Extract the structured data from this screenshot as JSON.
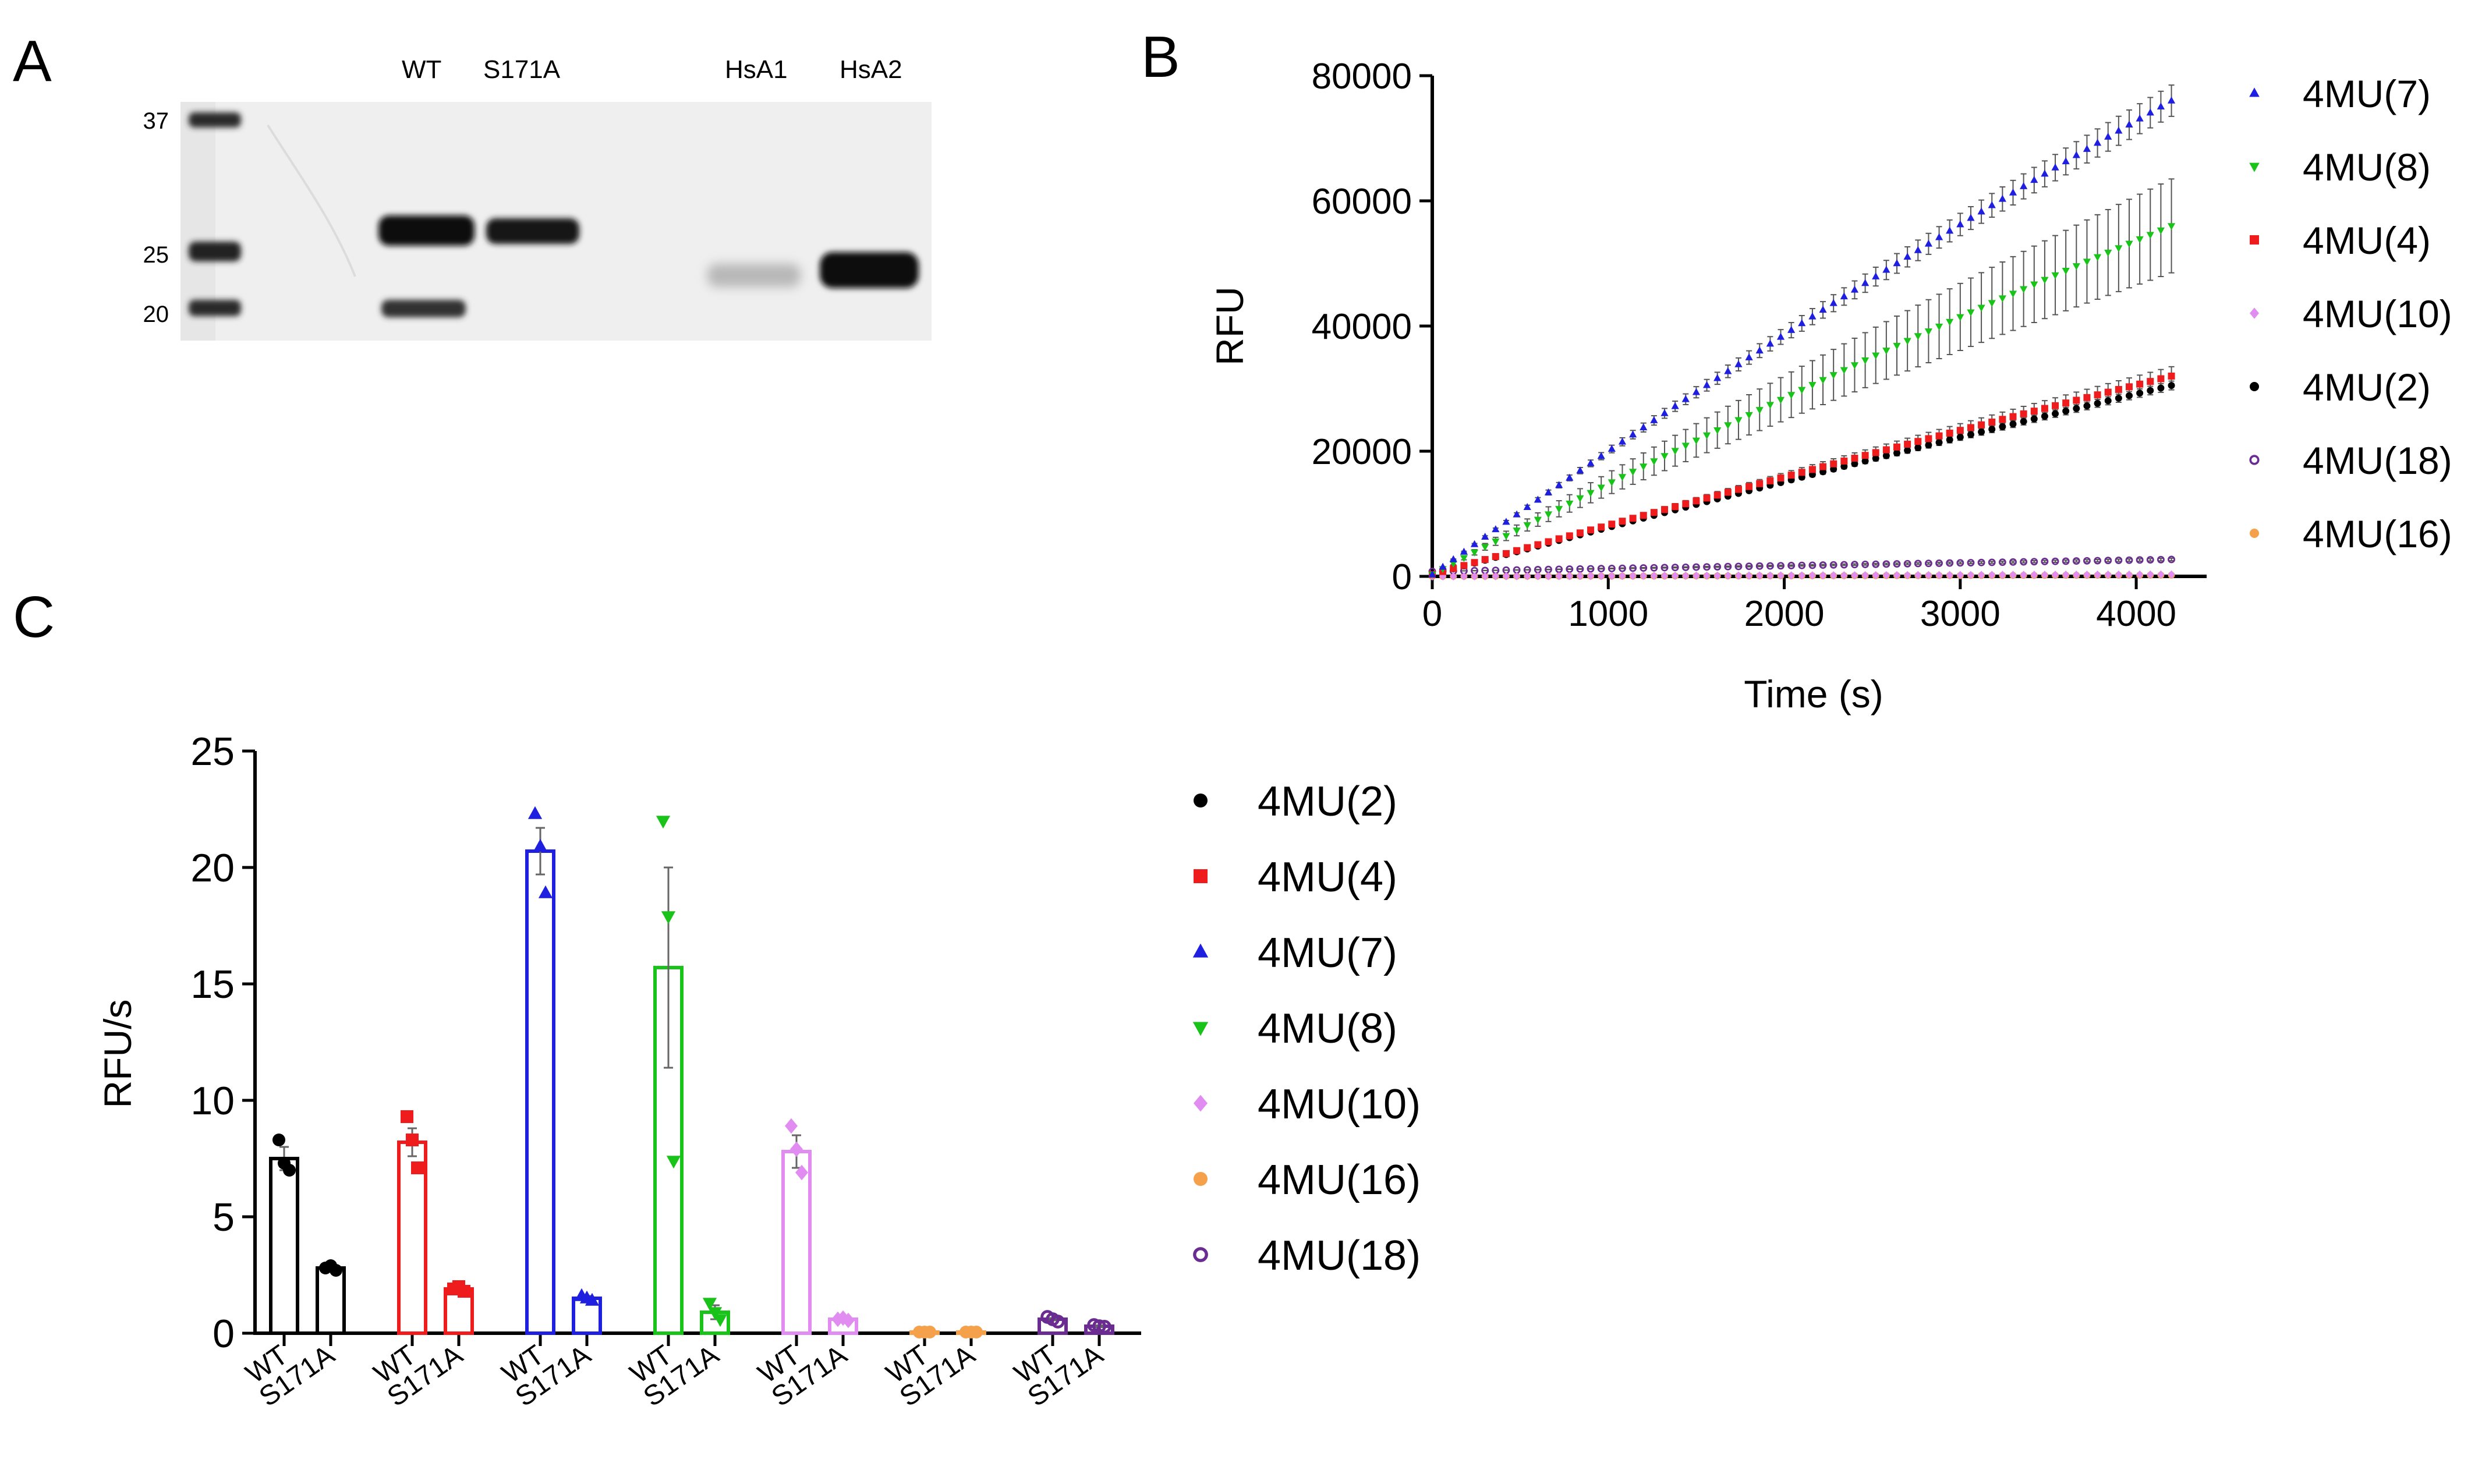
{
  "panel_labels": {
    "a": "A",
    "b": "B",
    "c": "C"
  },
  "gel": {
    "lane_labels": [
      "WT",
      "S171A",
      "HsA1",
      "HsA2"
    ],
    "mw_markers": [
      "37",
      "25",
      "20"
    ]
  },
  "chart_data": [
    {
      "type": "scatter",
      "title": "",
      "xlabel": "Time (s)",
      "ylabel": "RFU",
      "xlim": [
        0,
        4400
      ],
      "ylim": [
        0,
        80000
      ],
      "x_ticks": [
        "0",
        "1000",
        "2000",
        "3000",
        "4000"
      ],
      "y_ticks": [
        "0",
        "20000",
        "40000",
        "60000",
        "80000"
      ],
      "x_tick_values": [
        0,
        1000,
        2000,
        3000,
        4000
      ],
      "y_tick_values": [
        0,
        20000,
        40000,
        60000,
        80000
      ],
      "legend_position": "right",
      "series": [
        {
          "name": "4MU(7)",
          "color": "#1f1fe0",
          "marker": "triangle-up",
          "x_start": 0,
          "x_end": 4200,
          "y_start": 300,
          "y_end": 76000,
          "curve": 0.12,
          "err_end": 2500
        },
        {
          "name": "4MU(8)",
          "color": "#19c319",
          "marker": "triangle-down",
          "x_start": 0,
          "x_end": 4200,
          "y_start": 300,
          "y_end": 56000,
          "curve": 0.12,
          "err_end": 7500
        },
        {
          "name": "4MU(4)",
          "color": "#ee1c1c",
          "marker": "square",
          "x_start": 0,
          "x_end": 4200,
          "y_start": 300,
          "y_end": 32000,
          "curve": 0.06,
          "err_end": 1500
        },
        {
          "name": "4MU(10)",
          "color": "#e08cf0",
          "marker": "diamond",
          "x_start": 0,
          "x_end": 4200,
          "y_start": 0,
          "y_end": 300,
          "curve": 0,
          "err_end": 0
        },
        {
          "name": "4MU(2)",
          "color": "#000000",
          "marker": "circle",
          "x_start": 0,
          "x_end": 4200,
          "y_start": 300,
          "y_end": 30500,
          "curve": 0.06,
          "err_end": 700
        },
        {
          "name": "4MU(18)",
          "color": "#6a2c91",
          "marker": "circle-open",
          "x_start": 0,
          "x_end": 4200,
          "y_start": 800,
          "y_end": 2700,
          "curve": 0,
          "err_end": 200
        },
        {
          "name": "4MU(16)",
          "color": "#f5a04a",
          "marker": "circle",
          "x_start": 0,
          "x_end": 4200,
          "y_start": 0,
          "y_end": 200,
          "curve": 0,
          "err_end": 0
        }
      ]
    },
    {
      "type": "bar",
      "title": "",
      "xlabel": "",
      "ylabel": "RFU/s",
      "ylim": [
        0,
        25
      ],
      "y_ticks": [
        "0",
        "5",
        "10",
        "15",
        "20",
        "25"
      ],
      "y_tick_values": [
        0,
        5,
        10,
        15,
        20,
        25
      ],
      "categories": [
        "WT",
        "S171A"
      ],
      "legend_position": "right",
      "series": [
        {
          "name": "4MU(2)",
          "color": "#000000",
          "marker": "circle",
          "values": [
            7.5,
            2.8
          ],
          "errors": [
            0.5,
            0.1
          ],
          "points": [
            [
              8.3,
              7.3,
              7.0
            ],
            [
              2.8,
              2.9,
              2.7
            ]
          ]
        },
        {
          "name": "4MU(4)",
          "color": "#ee1c1c",
          "marker": "square",
          "values": [
            8.2,
            1.9
          ],
          "errors": [
            0.6,
            0.1
          ],
          "points": [
            [
              9.3,
              8.3,
              7.1
            ],
            [
              1.9,
              2.0,
              1.8
            ]
          ]
        },
        {
          "name": "4MU(7)",
          "color": "#1f1fe0",
          "marker": "triangle-up",
          "values": [
            20.7,
            1.5
          ],
          "errors": [
            1.0,
            0.1
          ],
          "points": [
            [
              22.3,
              20.9,
              18.9
            ],
            [
              1.6,
              1.5,
              1.4
            ]
          ]
        },
        {
          "name": "4MU(8)",
          "color": "#19c319",
          "marker": "triangle-down",
          "values": [
            15.7,
            0.9
          ],
          "errors": [
            4.3,
            0.3
          ],
          "points": [
            [
              22.0,
              17.9,
              7.4
            ],
            [
              1.3,
              0.9,
              0.6
            ]
          ]
        },
        {
          "name": "4MU(10)",
          "color": "#e08cf0",
          "marker": "diamond",
          "values": [
            7.8,
            0.6
          ],
          "errors": [
            0.7,
            0.05
          ],
          "points": [
            [
              8.9,
              7.9,
              6.9
            ],
            [
              0.6,
              0.65,
              0.55
            ]
          ]
        },
        {
          "name": "4MU(16)",
          "color": "#f5a04a",
          "marker": "circle",
          "values": [
            0.05,
            0.05
          ],
          "errors": [
            0,
            0
          ],
          "points": [
            [
              0.05,
              0.05,
              0.05
            ],
            [
              0.05,
              0.05,
              0.05
            ]
          ]
        },
        {
          "name": "4MU(18)",
          "color": "#6a2c91",
          "marker": "circle-open",
          "values": [
            0.6,
            0.3
          ],
          "errors": [
            0.05,
            0.03
          ],
          "points": [
            [
              0.7,
              0.6,
              0.5
            ],
            [
              0.35,
              0.3,
              0.28
            ]
          ]
        }
      ]
    }
  ]
}
